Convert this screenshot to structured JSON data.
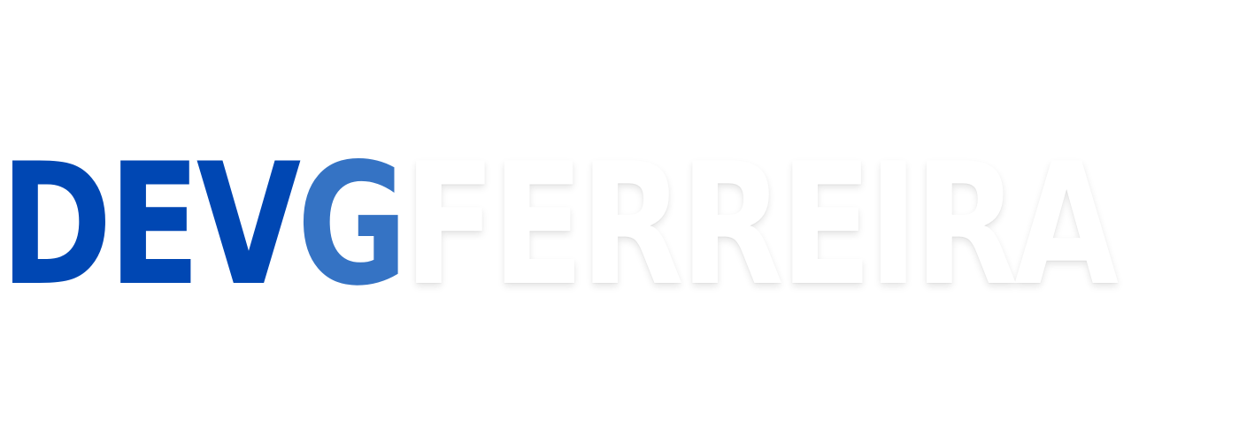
{
  "logo": {
    "part_dev": "DEV",
    "part_g": "G",
    "part_ferreira": "FERREIRA",
    "colors": {
      "dev": "#0047b3",
      "g": "#3573c4",
      "ferreira": "#ffffff",
      "background": "#ffffff"
    }
  }
}
